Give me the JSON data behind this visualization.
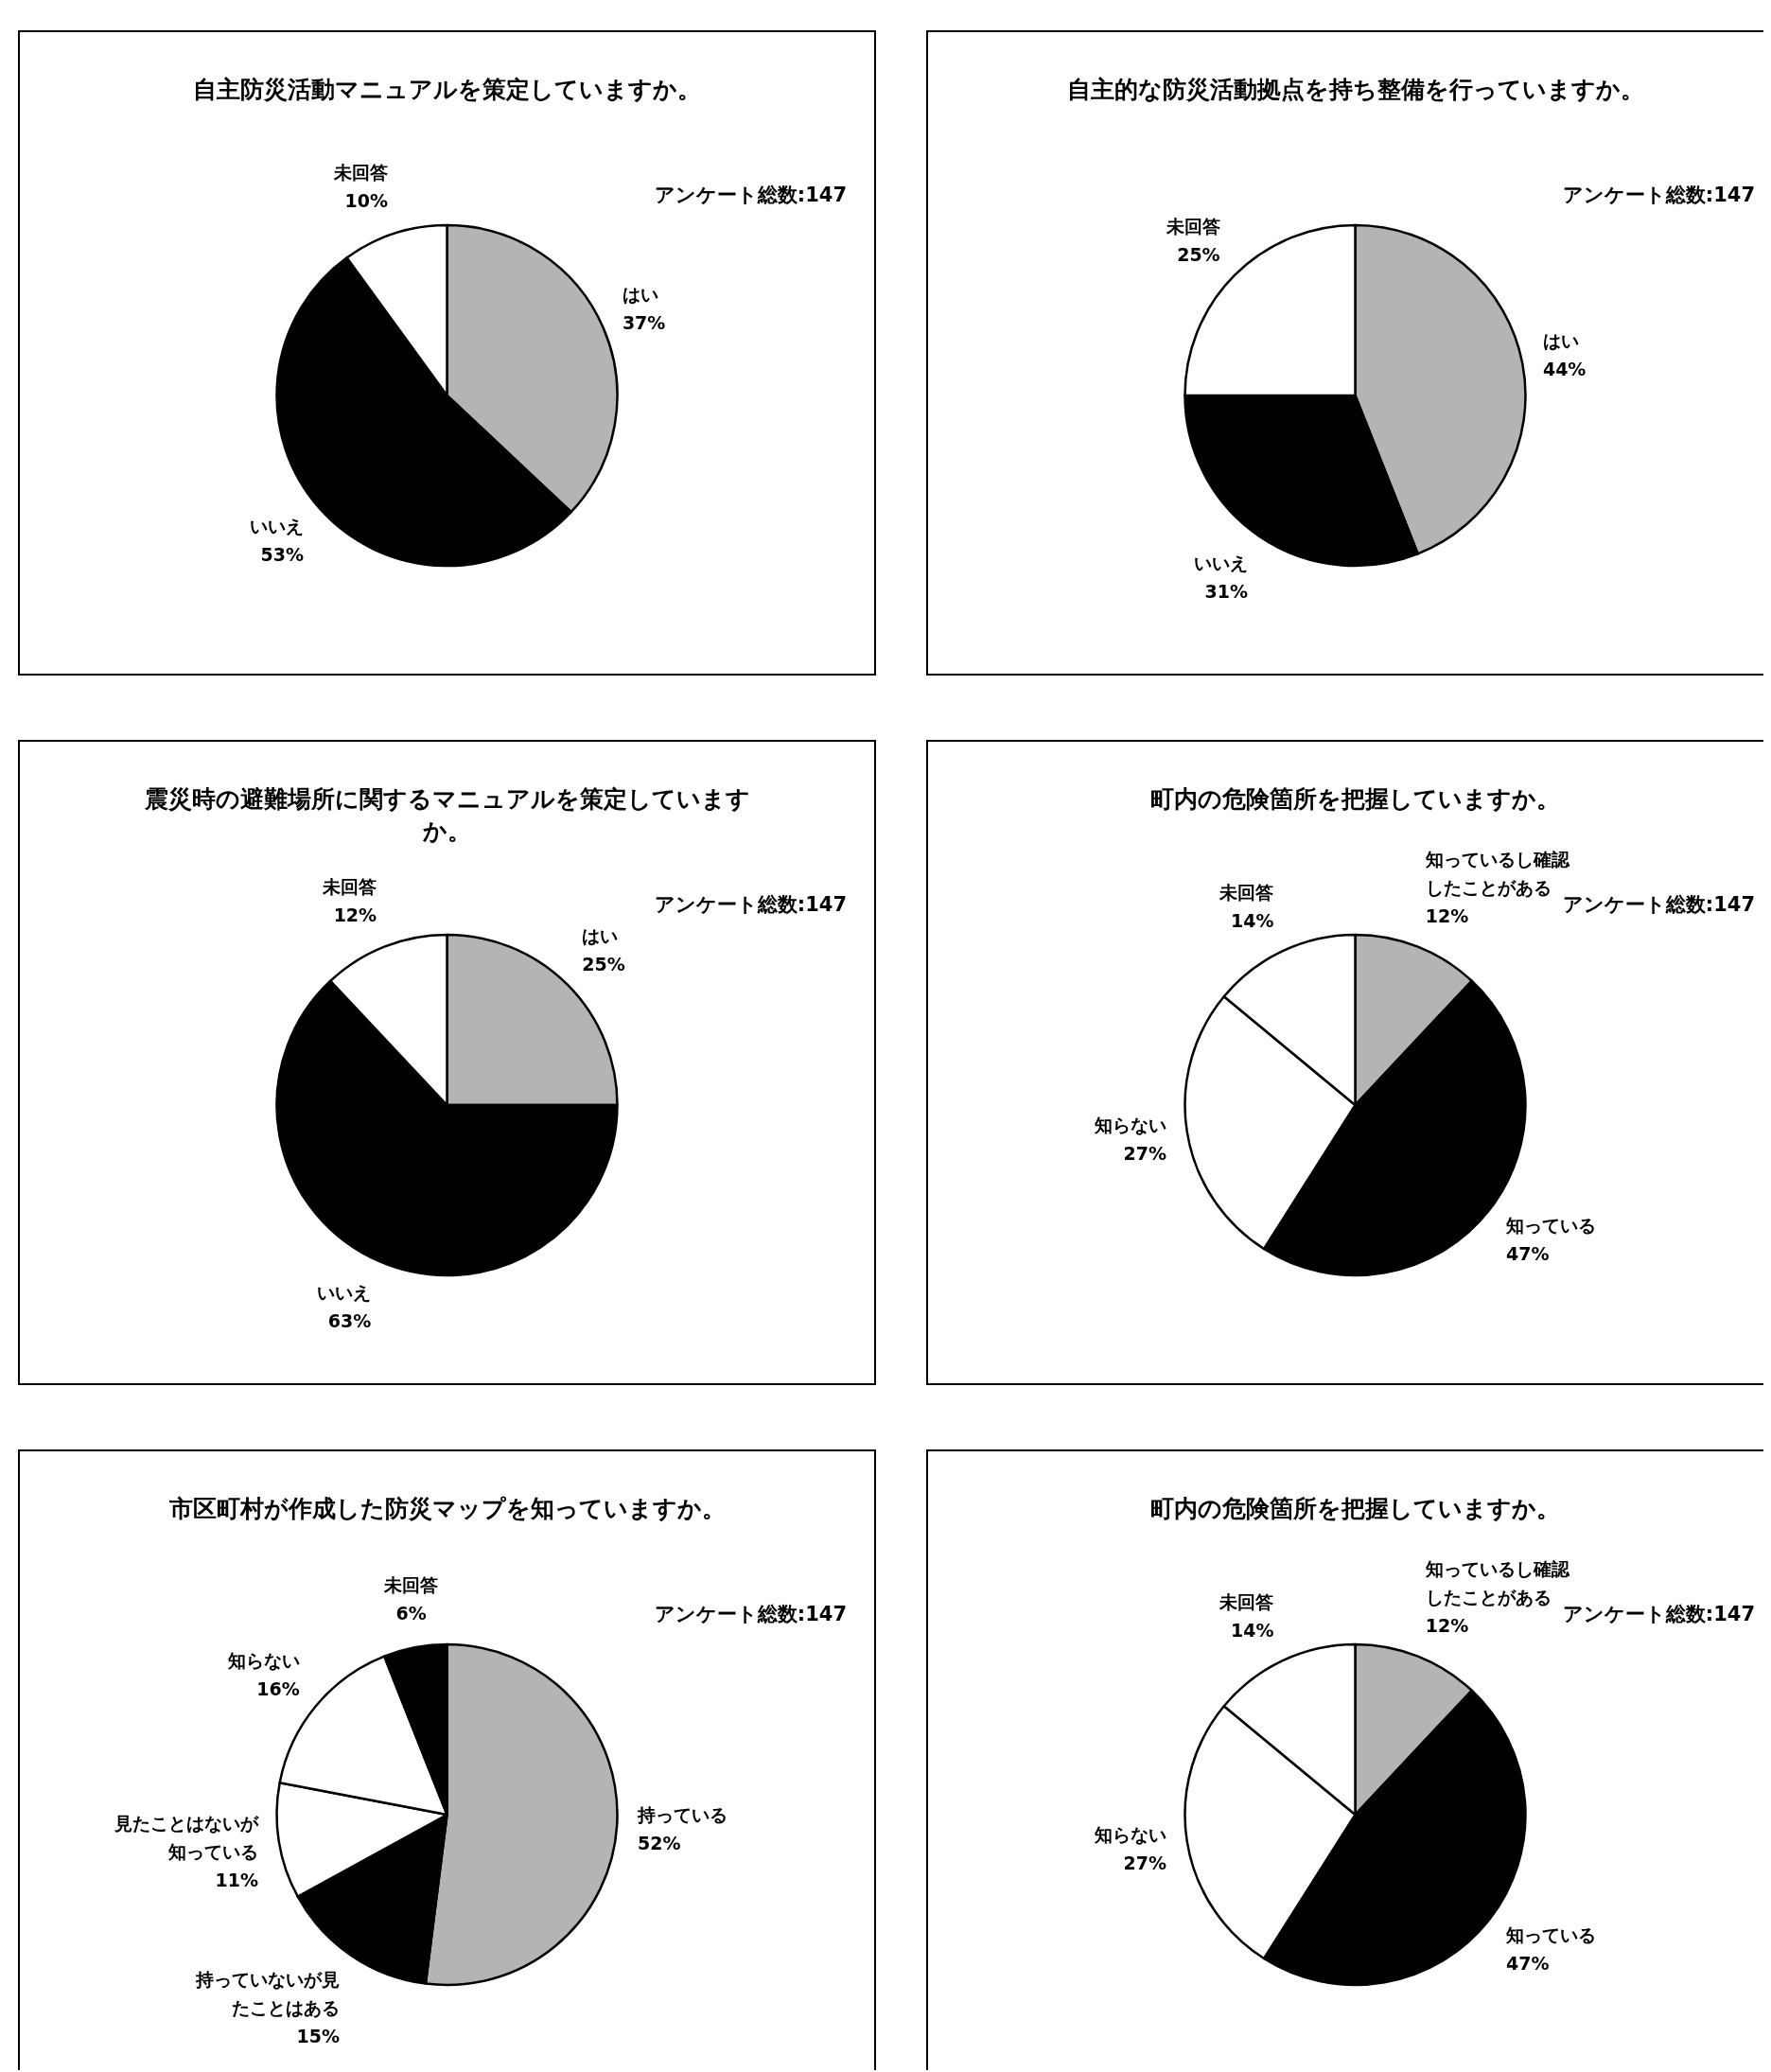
{
  "chart_data": [
    {
      "type": "pie",
      "title": "自主防災活動マニュアルを策定していますか。",
      "categories": [
        "はい",
        "いいえ",
        "未回答"
      ],
      "values": [
        37,
        53,
        10
      ],
      "value_labels": [
        "37%",
        "53%",
        "10%"
      ],
      "colors": [
        "#b4b4b4",
        "#000000",
        "#ffffff"
      ],
      "annotations": [
        "アンケート総数:147"
      ],
      "legend": false
    },
    {
      "type": "pie",
      "title": "自主的な防災活動拠点を持ち整備を行っていますか。",
      "categories": [
        "はい",
        "いいえ",
        "未回答"
      ],
      "values": [
        44,
        31,
        25
      ],
      "value_labels": [
        "44%",
        "31%",
        "25%"
      ],
      "colors": [
        "#b4b4b4",
        "#000000",
        "#ffffff"
      ],
      "annotations": [
        "アンケート総数:147"
      ],
      "legend": false
    },
    {
      "type": "pie",
      "title": "震災時の避難場所に関するマニュアルを策定していますか。",
      "categories": [
        "はい",
        "いいえ",
        "未回答"
      ],
      "values": [
        25,
        63,
        12
      ],
      "value_labels": [
        "25%",
        "63%",
        "12%"
      ],
      "colors": [
        "#b4b4b4",
        "#000000",
        "#ffffff"
      ],
      "annotations": [
        "アンケート総数:147"
      ],
      "legend": false
    },
    {
      "type": "pie",
      "title": "町内の危険箇所を把握していますか。",
      "categories": [
        "知っているし確認したことがある",
        "知っている",
        "知らない",
        "未回答"
      ],
      "values": [
        12,
        47,
        27,
        14
      ],
      "value_labels": [
        "12%",
        "47%",
        "27%",
        "14%"
      ],
      "colors": [
        "#b4b4b4",
        "#000000",
        "#ffffff",
        "#ffffff"
      ],
      "annotations": [
        "アンケート総数:147"
      ],
      "legend": false
    },
    {
      "type": "pie",
      "title": "市区町村が作成した防災マップを知っていますか。",
      "categories": [
        "持っている",
        "持っていないが見たことはある",
        "見たことはないが知っている",
        "知らない",
        "未回答"
      ],
      "values": [
        52,
        15,
        11,
        16,
        6
      ],
      "value_labels": [
        "52%",
        "15%",
        "11%",
        "16%",
        "6%"
      ],
      "colors": [
        "#b4b4b4",
        "#000000",
        "#ffffff",
        "#ffffff",
        "#000000"
      ],
      "annotations": [
        "アンケート総数:147"
      ],
      "legend": false
    },
    {
      "type": "pie",
      "title": "町内の危険箇所を把握していますか。",
      "categories": [
        "知っているし確認したことがある",
        "知っている",
        "知らない",
        "未回答"
      ],
      "values": [
        12,
        47,
        27,
        14
      ],
      "value_labels": [
        "12%",
        "47%",
        "27%",
        "14%"
      ],
      "colors": [
        "#b4b4b4",
        "#000000",
        "#ffffff",
        "#ffffff"
      ],
      "annotations": [
        "アンケート総数:147"
      ],
      "legend": false
    }
  ]
}
